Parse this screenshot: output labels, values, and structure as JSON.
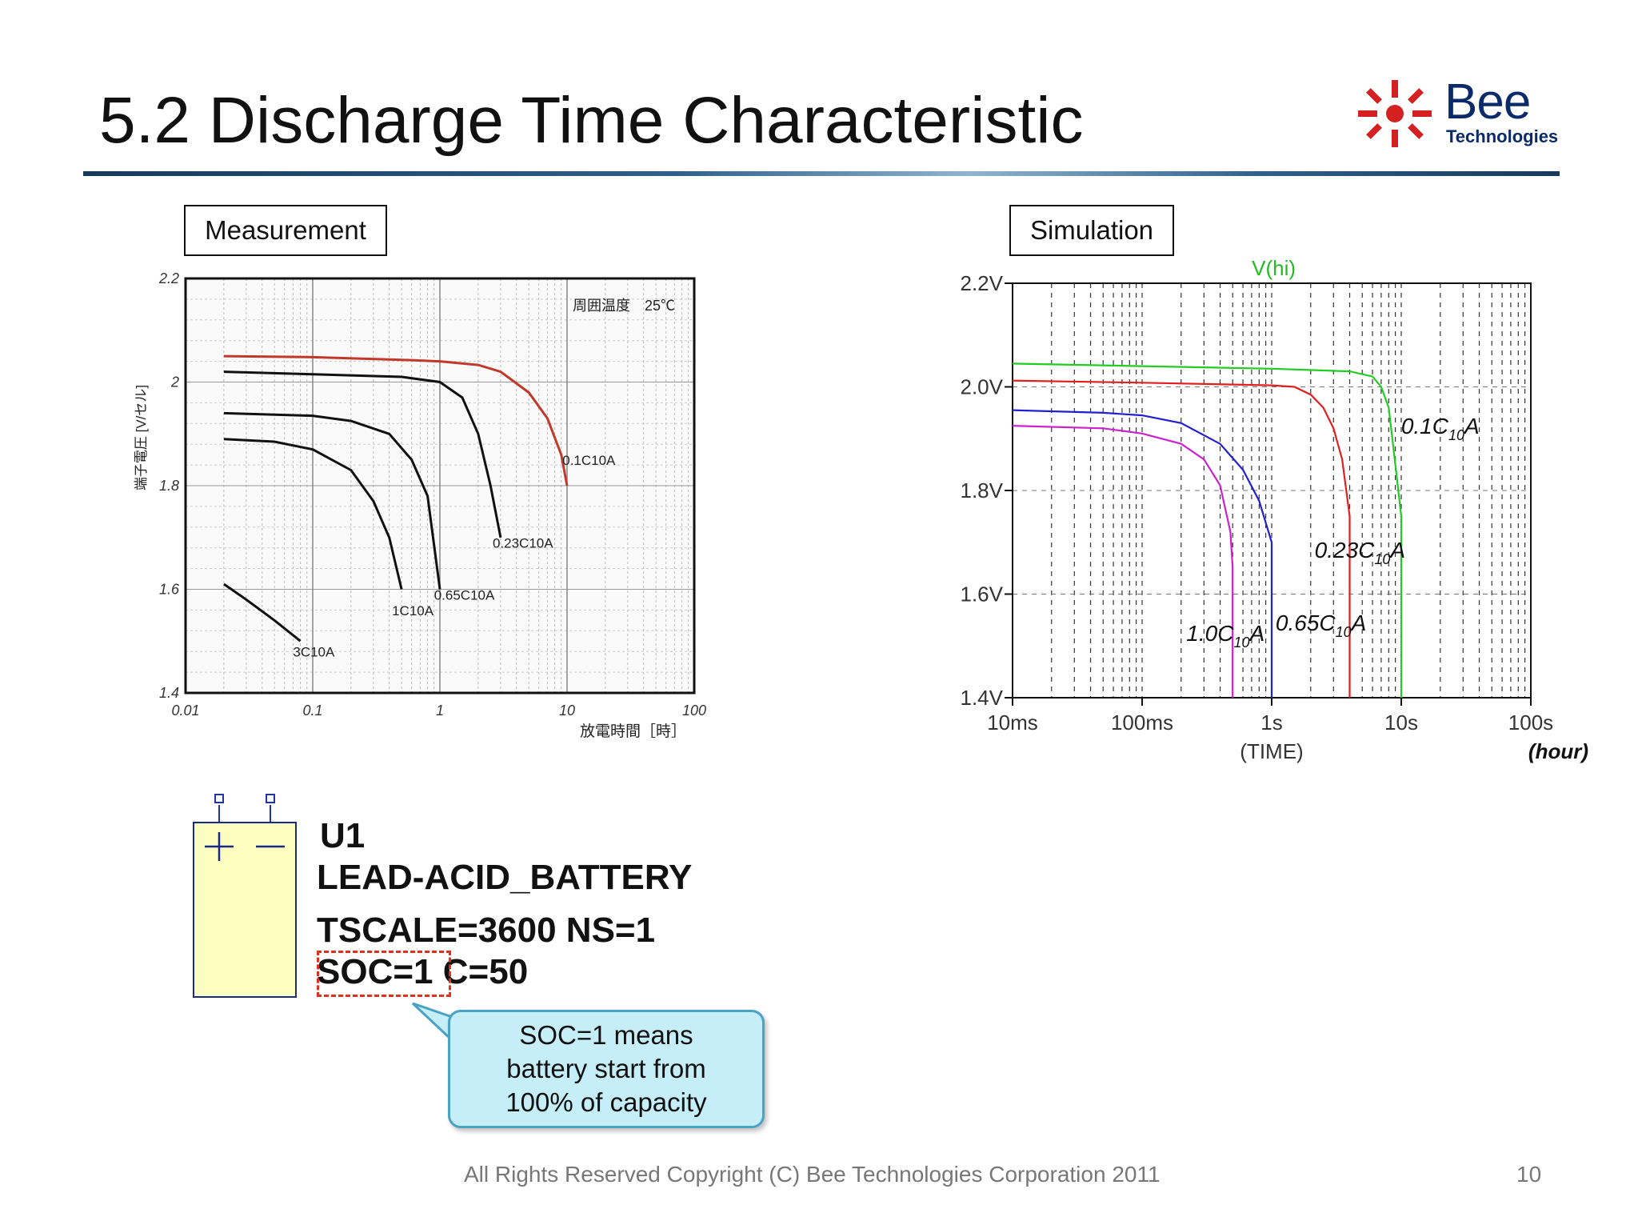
{
  "slide": {
    "title": "5.2 Discharge Time Characteristic",
    "logo_word": "Bee",
    "logo_sub": "Technologies",
    "measurement_label": "Measurement",
    "simulation_label": "Simulation",
    "footer": "All Rights Reserved Copyright (C) Bee Technologies Corporation 2011",
    "page_number": "10",
    "colors": {
      "title_rule": "#163a5c",
      "logo": "#d42020",
      "callout_bg": "#c6eef8",
      "soc_box": "#e0301e"
    }
  },
  "symbol": {
    "ref": "U1",
    "name": "LEAD-ACID_BATTERY",
    "params_line1": "TSCALE=3600 NS=1",
    "params_soc": "SOC=1",
    "params_c": "C=50",
    "plus": "+",
    "minus": "—"
  },
  "callout": {
    "line1": "SOC=1 means",
    "line2": "battery start from",
    "line3": "100% of capacity"
  },
  "chart_data": [
    {
      "type": "line",
      "panel": "Measurement",
      "xscale": "log",
      "xlim": [
        0.01,
        100
      ],
      "ylim": [
        1.4,
        2.2
      ],
      "x_ticks": [
        "0.01",
        "0.1",
        "1",
        "10",
        "100"
      ],
      "y_ticks": [
        "1.4",
        "1.6",
        "1.8",
        "2",
        "2.2"
      ],
      "xlabel": "放電時間［時］",
      "ylabel": "端子電圧 [V/セル]",
      "annotation": "周囲温度　25℃",
      "grid": true,
      "series": [
        {
          "name": "0.1C10A",
          "color": "#c0392b",
          "points": [
            [
              0.02,
              2.05
            ],
            [
              0.1,
              2.048
            ],
            [
              0.5,
              2.043
            ],
            [
              1,
              2.04
            ],
            [
              2,
              2.033
            ],
            [
              3,
              2.02
            ],
            [
              5,
              1.98
            ],
            [
              7,
              1.93
            ],
            [
              9,
              1.86
            ],
            [
              10,
              1.8
            ]
          ]
        },
        {
          "name": "0.23C10A",
          "color": "#111111",
          "points": [
            [
              0.02,
              2.02
            ],
            [
              0.1,
              2.015
            ],
            [
              0.5,
              2.01
            ],
            [
              1,
              2.0
            ],
            [
              1.5,
              1.97
            ],
            [
              2,
              1.9
            ],
            [
              2.5,
              1.8
            ],
            [
              3,
              1.7
            ]
          ]
        },
        {
          "name": "0.65C10A",
          "color": "#111111",
          "points": [
            [
              0.02,
              1.94
            ],
            [
              0.1,
              1.935
            ],
            [
              0.2,
              1.925
            ],
            [
              0.4,
              1.9
            ],
            [
              0.6,
              1.85
            ],
            [
              0.8,
              1.78
            ],
            [
              1,
              1.6
            ]
          ]
        },
        {
          "name": "1C10A",
          "color": "#111111",
          "points": [
            [
              0.02,
              1.89
            ],
            [
              0.05,
              1.885
            ],
            [
              0.1,
              1.87
            ],
            [
              0.2,
              1.83
            ],
            [
              0.3,
              1.77
            ],
            [
              0.4,
              1.7
            ],
            [
              0.5,
              1.6
            ]
          ]
        },
        {
          "name": "3C10A",
          "color": "#111111",
          "points": [
            [
              0.02,
              1.61
            ],
            [
              0.03,
              1.58
            ],
            [
              0.05,
              1.54
            ],
            [
              0.08,
              1.5
            ]
          ]
        }
      ]
    },
    {
      "type": "line",
      "panel": "Simulation",
      "xscale": "log",
      "xlim": [
        0.01,
        100
      ],
      "ylim": [
        1.4,
        2.2
      ],
      "x_ticks": [
        "10ms",
        "100ms",
        "1s",
        "10s",
        "100s"
      ],
      "y_ticks": [
        "1.4V",
        "1.6V",
        "1.8V",
        "2.0V",
        "2.2V"
      ],
      "xlabel": "(TIME)",
      "x_unit_note": "(hour)",
      "trace_label": "V(hi)",
      "grid": true,
      "series": [
        {
          "label_main": "0.1C",
          "label_sub": "10",
          "label_end": "A",
          "color": "#22cc22",
          "points": [
            [
              0.01,
              2.045
            ],
            [
              0.1,
              2.04
            ],
            [
              1,
              2.035
            ],
            [
              4,
              2.03
            ],
            [
              6,
              2.02
            ],
            [
              7,
              2.0
            ],
            [
              8,
              1.96
            ],
            [
              9,
              1.85
            ],
            [
              10,
              1.75
            ],
            [
              10,
              1.4
            ]
          ]
        },
        {
          "label_main": "0.23C",
          "label_sub": "10",
          "label_end": "A",
          "color": "#e02020",
          "points": [
            [
              0.01,
              2.012
            ],
            [
              0.1,
              2.008
            ],
            [
              1,
              2.003
            ],
            [
              1.5,
              2.0
            ],
            [
              2,
              1.985
            ],
            [
              2.5,
              1.96
            ],
            [
              3,
              1.92
            ],
            [
              3.5,
              1.86
            ],
            [
              4,
              1.75
            ],
            [
              4,
              1.4
            ]
          ]
        },
        {
          "label_main": "0.65C",
          "label_sub": "10",
          "label_end": "A",
          "color": "#2020d0",
          "points": [
            [
              0.01,
              1.955
            ],
            [
              0.05,
              1.95
            ],
            [
              0.1,
              1.945
            ],
            [
              0.2,
              1.93
            ],
            [
              0.4,
              1.89
            ],
            [
              0.6,
              1.84
            ],
            [
              0.8,
              1.78
            ],
            [
              1,
              1.7
            ],
            [
              1,
              1.4
            ]
          ]
        },
        {
          "label_main": "1.0C",
          "label_sub": "10",
          "label_end": "A",
          "color": "#cc22cc",
          "points": [
            [
              0.01,
              1.925
            ],
            [
              0.05,
              1.92
            ],
            [
              0.1,
              1.91
            ],
            [
              0.2,
              1.89
            ],
            [
              0.3,
              1.86
            ],
            [
              0.4,
              1.81
            ],
            [
              0.48,
              1.72
            ],
            [
              0.5,
              1.65
            ],
            [
              0.5,
              1.4
            ]
          ]
        }
      ]
    }
  ]
}
